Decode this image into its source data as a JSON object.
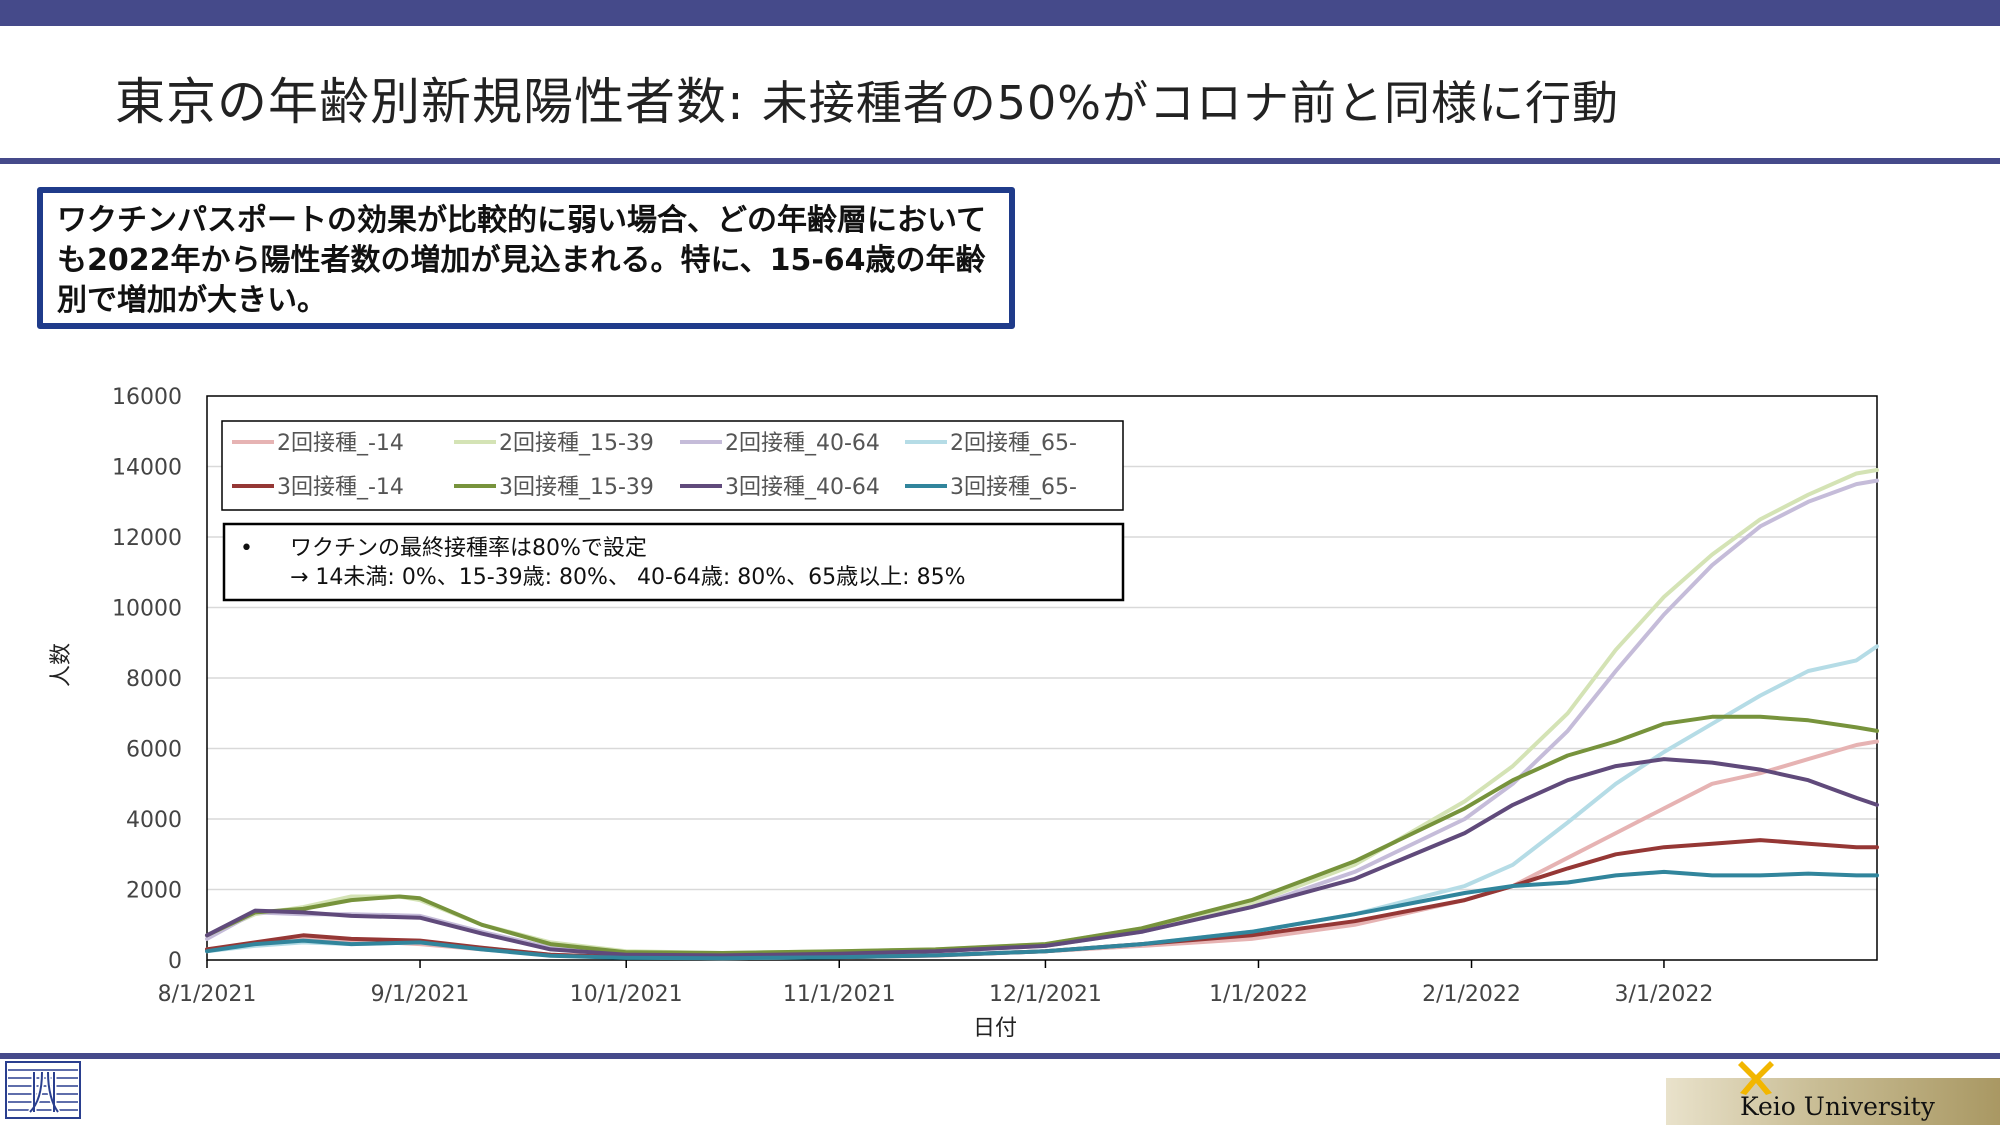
{
  "header": {
    "title_main": "東京の年齢別新規陽性者数: ",
    "title_sub": "未接種者の50%がコロナ前と同様に行動"
  },
  "callout": {
    "text": "ワクチンパスポートの効果が比較的に弱い場合、どの年齢層においても2022年から陽性者数の増加が見込まれる。特に、15-64歳の年齢別で増加が大きい。"
  },
  "notes": {
    "line1": "ワクチンの最終接種率は80%で設定",
    "line2": "→ 14未満: 0%、15-39歳: 80%、 40-64歳: 80%、65歳以上: 85%"
  },
  "footer": {
    "university": "Keio University"
  },
  "chart_data": {
    "type": "line",
    "xlabel": "日付",
    "ylabel": "人数",
    "ylim": [
      0,
      16000
    ],
    "yticks": [
      0,
      2000,
      4000,
      6000,
      8000,
      10000,
      12000,
      14000,
      16000
    ],
    "xlim": [
      "2021-08-01",
      "2022-04-01"
    ],
    "xticks": [
      "8/1/2021",
      "9/1/2021",
      "10/1/2021",
      "11/1/2021",
      "12/1/2021",
      "1/1/2022",
      "2/1/2022",
      "3/1/2022"
    ],
    "xtick_dates": [
      "2021-08-01",
      "2021-09-01",
      "2021-10-01",
      "2021-11-01",
      "2021-12-01",
      "2022-01-01",
      "2022-02-01",
      "2022-03-01"
    ],
    "grid": true,
    "legend_position": "top-left",
    "series": [
      {
        "name": "2回接種_-14",
        "color": "#e6b3b3",
        "points": [
          [
            "2021-08-01",
            300
          ],
          [
            "2021-08-08",
            450
          ],
          [
            "2021-08-15",
            600
          ],
          [
            "2021-08-22",
            550
          ],
          [
            "2021-09-01",
            450
          ],
          [
            "2021-09-10",
            300
          ],
          [
            "2021-09-20",
            150
          ],
          [
            "2021-10-01",
            80
          ],
          [
            "2021-10-15",
            60
          ],
          [
            "2021-11-01",
            80
          ],
          [
            "2021-11-15",
            120
          ],
          [
            "2021-12-01",
            250
          ],
          [
            "2021-12-15",
            400
          ],
          [
            "2021-12-31",
            600
          ],
          [
            "2022-01-15",
            1000
          ],
          [
            "2022-01-31",
            1700
          ],
          [
            "2022-02-07",
            2100
          ],
          [
            "2022-02-15",
            2900
          ],
          [
            "2022-02-22",
            3600
          ],
          [
            "2022-03-01",
            4300
          ],
          [
            "2022-03-08",
            5000
          ],
          [
            "2022-03-15",
            5300
          ],
          [
            "2022-03-22",
            5700
          ],
          [
            "2022-03-29",
            6100
          ],
          [
            "2022-04-01",
            6200
          ]
        ]
      },
      {
        "name": "2回接種_15-39",
        "color": "#d4e3b5",
        "points": [
          [
            "2021-08-01",
            700
          ],
          [
            "2021-08-08",
            1300
          ],
          [
            "2021-08-15",
            1500
          ],
          [
            "2021-08-22",
            1800
          ],
          [
            "2021-08-29",
            1800
          ],
          [
            "2021-09-01",
            1700
          ],
          [
            "2021-09-10",
            1000
          ],
          [
            "2021-09-20",
            500
          ],
          [
            "2021-10-01",
            250
          ],
          [
            "2021-10-15",
            200
          ],
          [
            "2021-11-01",
            250
          ],
          [
            "2021-11-15",
            300
          ],
          [
            "2021-12-01",
            450
          ],
          [
            "2021-12-15",
            900
          ],
          [
            "2021-12-31",
            1600
          ],
          [
            "2022-01-15",
            2700
          ],
          [
            "2022-01-31",
            4500
          ],
          [
            "2022-02-07",
            5500
          ],
          [
            "2022-02-15",
            7000
          ],
          [
            "2022-02-22",
            8800
          ],
          [
            "2022-03-01",
            10300
          ],
          [
            "2022-03-08",
            11500
          ],
          [
            "2022-03-15",
            12500
          ],
          [
            "2022-03-22",
            13200
          ],
          [
            "2022-03-29",
            13800
          ],
          [
            "2022-04-01",
            13900
          ]
        ]
      },
      {
        "name": "2回接種_40-64",
        "color": "#c5bcd9",
        "points": [
          [
            "2021-08-01",
            600
          ],
          [
            "2021-08-08",
            1350
          ],
          [
            "2021-08-15",
            1300
          ],
          [
            "2021-08-22",
            1300
          ],
          [
            "2021-09-01",
            1250
          ],
          [
            "2021-09-10",
            800
          ],
          [
            "2021-09-20",
            350
          ],
          [
            "2021-10-01",
            180
          ],
          [
            "2021-10-15",
            150
          ],
          [
            "2021-11-01",
            200
          ],
          [
            "2021-11-15",
            250
          ],
          [
            "2021-12-01",
            400
          ],
          [
            "2021-12-15",
            800
          ],
          [
            "2021-12-31",
            1500
          ],
          [
            "2022-01-15",
            2500
          ],
          [
            "2022-01-31",
            4000
          ],
          [
            "2022-02-07",
            5000
          ],
          [
            "2022-02-15",
            6500
          ],
          [
            "2022-02-22",
            8200
          ],
          [
            "2022-03-01",
            9800
          ],
          [
            "2022-03-08",
            11200
          ],
          [
            "2022-03-15",
            12300
          ],
          [
            "2022-03-22",
            13000
          ],
          [
            "2022-03-29",
            13500
          ],
          [
            "2022-04-01",
            13600
          ]
        ]
      },
      {
        "name": "2回接種_65-",
        "color": "#b5dce6",
        "points": [
          [
            "2021-08-01",
            250
          ],
          [
            "2021-08-08",
            400
          ],
          [
            "2021-08-15",
            500
          ],
          [
            "2021-08-22",
            450
          ],
          [
            "2021-09-01",
            500
          ],
          [
            "2021-09-10",
            350
          ],
          [
            "2021-09-20",
            150
          ],
          [
            "2021-10-01",
            80
          ],
          [
            "2021-10-15",
            50
          ],
          [
            "2021-11-01",
            80
          ],
          [
            "2021-11-15",
            130
          ],
          [
            "2021-12-01",
            250
          ],
          [
            "2021-12-15",
            450
          ],
          [
            "2021-12-31",
            800
          ],
          [
            "2022-01-15",
            1300
          ],
          [
            "2022-01-31",
            2100
          ],
          [
            "2022-02-07",
            2700
          ],
          [
            "2022-02-15",
            3900
          ],
          [
            "2022-02-22",
            5000
          ],
          [
            "2022-03-01",
            5900
          ],
          [
            "2022-03-08",
            6700
          ],
          [
            "2022-03-15",
            7500
          ],
          [
            "2022-03-22",
            8200
          ],
          [
            "2022-03-29",
            8500
          ],
          [
            "2022-04-01",
            8900
          ]
        ]
      },
      {
        "name": "3回接種_-14",
        "color": "#953735",
        "points": [
          [
            "2021-08-01",
            300
          ],
          [
            "2021-08-08",
            500
          ],
          [
            "2021-08-15",
            700
          ],
          [
            "2021-08-22",
            600
          ],
          [
            "2021-09-01",
            550
          ],
          [
            "2021-09-10",
            350
          ],
          [
            "2021-09-20",
            150
          ],
          [
            "2021-10-01",
            80
          ],
          [
            "2021-10-15",
            60
          ],
          [
            "2021-11-01",
            80
          ],
          [
            "2021-11-15",
            130
          ],
          [
            "2021-12-01",
            250
          ],
          [
            "2021-12-15",
            450
          ],
          [
            "2021-12-31",
            700
          ],
          [
            "2022-01-15",
            1100
          ],
          [
            "2022-01-31",
            1700
          ],
          [
            "2022-02-07",
            2100
          ],
          [
            "2022-02-15",
            2600
          ],
          [
            "2022-02-22",
            3000
          ],
          [
            "2022-03-01",
            3200
          ],
          [
            "2022-03-08",
            3300
          ],
          [
            "2022-03-15",
            3400
          ],
          [
            "2022-03-22",
            3300
          ],
          [
            "2022-03-29",
            3200
          ],
          [
            "2022-04-01",
            3200
          ]
        ]
      },
      {
        "name": "3回接種_15-39",
        "color": "#77933c",
        "points": [
          [
            "2021-08-01",
            700
          ],
          [
            "2021-08-08",
            1350
          ],
          [
            "2021-08-15",
            1450
          ],
          [
            "2021-08-22",
            1700
          ],
          [
            "2021-08-29",
            1800
          ],
          [
            "2021-09-01",
            1750
          ],
          [
            "2021-09-10",
            1000
          ],
          [
            "2021-09-20",
            450
          ],
          [
            "2021-10-01",
            220
          ],
          [
            "2021-10-15",
            200
          ],
          [
            "2021-11-01",
            250
          ],
          [
            "2021-11-15",
            300
          ],
          [
            "2021-12-01",
            450
          ],
          [
            "2021-12-15",
            900
          ],
          [
            "2021-12-31",
            1700
          ],
          [
            "2022-01-15",
            2800
          ],
          [
            "2022-01-31",
            4300
          ],
          [
            "2022-02-07",
            5100
          ],
          [
            "2022-02-15",
            5800
          ],
          [
            "2022-02-22",
            6200
          ],
          [
            "2022-03-01",
            6700
          ],
          [
            "2022-03-08",
            6900
          ],
          [
            "2022-03-15",
            6900
          ],
          [
            "2022-03-22",
            6800
          ],
          [
            "2022-03-29",
            6600
          ],
          [
            "2022-04-01",
            6500
          ]
        ]
      },
      {
        "name": "3回接種_40-64",
        "color": "#604a7b",
        "points": [
          [
            "2021-08-01",
            700
          ],
          [
            "2021-08-08",
            1400
          ],
          [
            "2021-08-15",
            1350
          ],
          [
            "2021-08-22",
            1250
          ],
          [
            "2021-09-01",
            1200
          ],
          [
            "2021-09-10",
            750
          ],
          [
            "2021-09-20",
            300
          ],
          [
            "2021-10-01",
            150
          ],
          [
            "2021-10-15",
            130
          ],
          [
            "2021-11-01",
            180
          ],
          [
            "2021-11-15",
            250
          ],
          [
            "2021-12-01",
            400
          ],
          [
            "2021-12-15",
            800
          ],
          [
            "2021-12-31",
            1500
          ],
          [
            "2022-01-15",
            2300
          ],
          [
            "2022-01-31",
            3600
          ],
          [
            "2022-02-07",
            4400
          ],
          [
            "2022-02-15",
            5100
          ],
          [
            "2022-02-22",
            5500
          ],
          [
            "2022-03-01",
            5700
          ],
          [
            "2022-03-08",
            5600
          ],
          [
            "2022-03-15",
            5400
          ],
          [
            "2022-03-22",
            5100
          ],
          [
            "2022-03-29",
            4600
          ],
          [
            "2022-04-01",
            4400
          ]
        ]
      },
      {
        "name": "3回接種_65-",
        "color": "#31859c",
        "points": [
          [
            "2021-08-01",
            250
          ],
          [
            "2021-08-08",
            450
          ],
          [
            "2021-08-15",
            550
          ],
          [
            "2021-08-22",
            450
          ],
          [
            "2021-09-01",
            500
          ],
          [
            "2021-09-10",
            300
          ],
          [
            "2021-09-20",
            120
          ],
          [
            "2021-10-01",
            60
          ],
          [
            "2021-10-15",
            50
          ],
          [
            "2021-11-01",
            80
          ],
          [
            "2021-11-15",
            130
          ],
          [
            "2021-12-01",
            250
          ],
          [
            "2021-12-15",
            450
          ],
          [
            "2021-12-31",
            800
          ],
          [
            "2022-01-15",
            1300
          ],
          [
            "2022-01-31",
            1900
          ],
          [
            "2022-02-07",
            2100
          ],
          [
            "2022-02-15",
            2200
          ],
          [
            "2022-02-22",
            2400
          ],
          [
            "2022-03-01",
            2500
          ],
          [
            "2022-03-08",
            2400
          ],
          [
            "2022-03-15",
            2400
          ],
          [
            "2022-03-22",
            2450
          ],
          [
            "2022-03-29",
            2400
          ],
          [
            "2022-04-01",
            2400
          ]
        ]
      }
    ]
  }
}
